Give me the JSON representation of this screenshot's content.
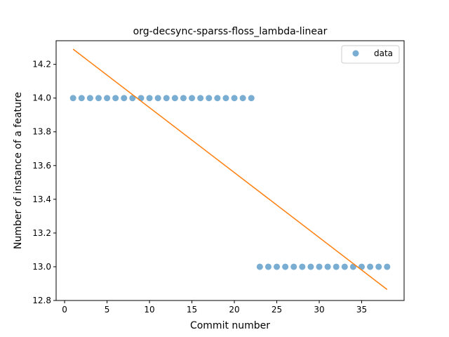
{
  "chart_data": {
    "type": "scatter",
    "title": "org-decsync-sparss-floss_lambda-linear",
    "xlabel": "Commit number",
    "ylabel": "Number of instance of a feature",
    "xlim": [
      -1,
      40
    ],
    "ylim": [
      12.8,
      14.34
    ],
    "xticks": [
      0,
      5,
      10,
      15,
      20,
      25,
      30,
      35
    ],
    "yticks": [
      12.8,
      13.0,
      13.2,
      13.4,
      13.6,
      13.8,
      14.0,
      14.2
    ],
    "xtick_labels": [
      "0",
      "5",
      "10",
      "15",
      "20",
      "25",
      "30",
      "35"
    ],
    "ytick_labels": [
      "12.8",
      "13.0",
      "13.2",
      "13.4",
      "13.6",
      "13.8",
      "14.0",
      "14.2"
    ],
    "grid": false,
    "legend": {
      "position": "top-right",
      "entries": [
        "data"
      ]
    },
    "series": [
      {
        "name": "data",
        "kind": "scatter",
        "color": "#1f77b4",
        "x": [
          1,
          2,
          3,
          4,
          5,
          6,
          7,
          8,
          9,
          10,
          11,
          12,
          13,
          14,
          15,
          16,
          17,
          18,
          19,
          20,
          21,
          22,
          23,
          24,
          25,
          26,
          27,
          28,
          29,
          30,
          31,
          32,
          33,
          34,
          35,
          36,
          37,
          38
        ],
        "y": [
          14,
          14,
          14,
          14,
          14,
          14,
          14,
          14,
          14,
          14,
          14,
          14,
          14,
          14,
          14,
          14,
          14,
          14,
          14,
          14,
          14,
          14,
          13,
          13,
          13,
          13,
          13,
          13,
          13,
          13,
          13,
          13,
          13,
          13,
          13,
          13,
          13,
          13
        ]
      },
      {
        "kind": "line",
        "color": "#ff7f0e",
        "x": [
          1,
          38
        ],
        "y": [
          14.29,
          12.865
        ]
      }
    ]
  }
}
